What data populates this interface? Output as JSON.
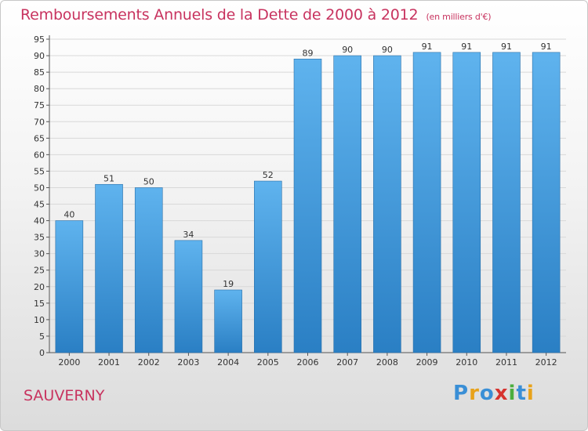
{
  "header": {
    "title": "Remboursements Annuels de la Dette de 2000 à 2012",
    "unit": "(en milliers d'€)"
  },
  "footer": {
    "place": "SAUVERNY",
    "logo": {
      "letters": [
        "P",
        "r",
        "o",
        "x",
        "i",
        "t",
        "i"
      ],
      "colors": [
        "#3a8fd6",
        "#e8a21a",
        "#3a8fd6",
        "#d6332f",
        "#4cae3e",
        "#3a8fd6",
        "#e8a21a"
      ]
    }
  },
  "colors": {
    "title": "#c8335f",
    "bar_light": "#5fb3ee",
    "bar_dark": "#2a7fc4",
    "grid": "#d8d8d8"
  },
  "chart_data": {
    "type": "bar",
    "categories": [
      "2000",
      "2001",
      "2002",
      "2003",
      "2004",
      "2005",
      "2006",
      "2007",
      "2008",
      "2009",
      "2010",
      "2011",
      "2012"
    ],
    "values": [
      40,
      51,
      50,
      34,
      19,
      52,
      89,
      90,
      90,
      91,
      91,
      91,
      91
    ],
    "title": "Remboursements Annuels de la Dette de 2000 à 2012",
    "xlabel": "",
    "ylabel": "",
    "ylim": [
      0,
      95
    ],
    "yticks": [
      0,
      5,
      10,
      15,
      20,
      25,
      30,
      35,
      40,
      45,
      50,
      55,
      60,
      65,
      70,
      75,
      80,
      85,
      90,
      95
    ],
    "grid": true,
    "data_labels": true
  }
}
